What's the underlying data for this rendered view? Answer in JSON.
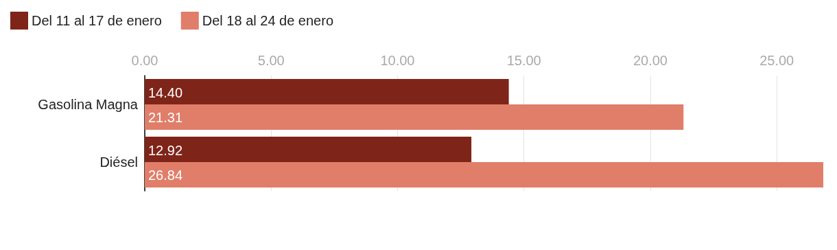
{
  "chart_data": {
    "type": "bar",
    "orientation": "horizontal",
    "categories": [
      "Gasolina Magna",
      "Diésel"
    ],
    "series": [
      {
        "name": "Del 11 al 17 de enero",
        "color": "#7f2418",
        "values": [
          14.4,
          12.92
        ],
        "value_labels": [
          "14.40",
          "12.92"
        ]
      },
      {
        "name": "Del 18 al 24 de enero",
        "color": "#e07e6a",
        "values": [
          21.31,
          26.84
        ],
        "value_labels": [
          "21.31",
          "26.84"
        ]
      }
    ],
    "xlim": [
      0,
      26.84
    ],
    "xticks": [
      {
        "value": 0,
        "label": "0.00"
      },
      {
        "value": 5,
        "label": "5.00"
      },
      {
        "value": 10,
        "label": "10.00"
      },
      {
        "value": 15,
        "label": "15.00"
      },
      {
        "value": 20,
        "label": "20.00"
      },
      {
        "value": 25,
        "label": "25.00"
      }
    ],
    "grid": "x",
    "legend": "top left"
  }
}
